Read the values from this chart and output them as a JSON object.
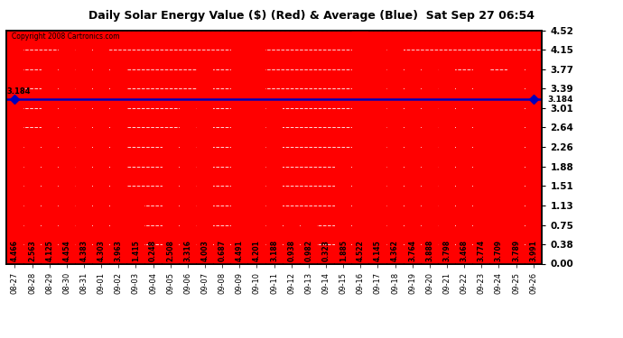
{
  "title": "Daily Solar Energy Value ($) (Red) & Average (Blue)  Sat Sep 27 06:54",
  "copyright": "Copyright 2008 Cartronics.com",
  "average": 3.184,
  "bar_color": "#ff0000",
  "avg_line_color": "#0000bb",
  "background_color": "#ffffff",
  "plot_bg_color": "#ff0000",
  "categories": [
    "08-27",
    "08-28",
    "08-29",
    "08-30",
    "08-31",
    "09-01",
    "09-02",
    "09-03",
    "09-04",
    "09-05",
    "09-06",
    "09-07",
    "09-08",
    "09-09",
    "09-10",
    "09-11",
    "09-12",
    "09-13",
    "09-14",
    "09-15",
    "09-16",
    "09-17",
    "09-18",
    "09-19",
    "09-20",
    "09-21",
    "09-22",
    "09-23",
    "09-24",
    "09-25",
    "09-26"
  ],
  "values": [
    4.466,
    2.563,
    4.125,
    4.454,
    4.383,
    4.303,
    3.963,
    1.415,
    0.248,
    2.508,
    3.316,
    4.003,
    0.687,
    4.491,
    4.201,
    3.188,
    0.938,
    0.982,
    0.323,
    1.885,
    4.522,
    4.145,
    4.362,
    3.764,
    3.888,
    3.798,
    3.468,
    3.774,
    3.709,
    3.789,
    3.991
  ],
  "ylim": [
    0.0,
    4.52
  ],
  "yticks": [
    0.0,
    0.38,
    0.75,
    1.13,
    1.51,
    1.88,
    2.26,
    2.64,
    3.01,
    3.39,
    3.77,
    4.15,
    4.52
  ],
  "grid_color": "#bbbbbb",
  "avg_label": "3.184"
}
